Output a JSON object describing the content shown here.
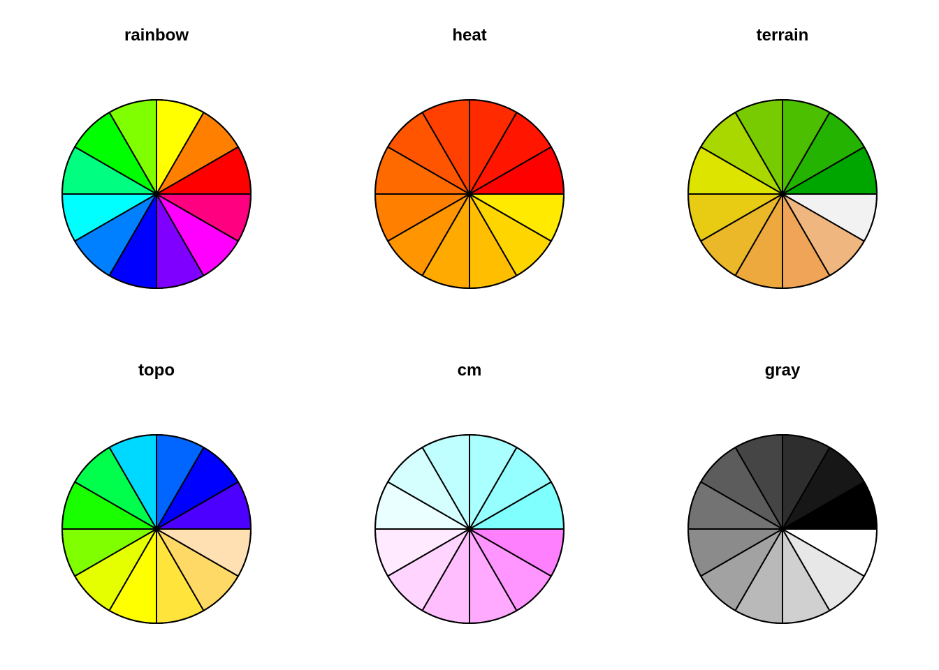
{
  "chart_data": [
    {
      "type": "pie",
      "title": "rainbow",
      "values": [
        1,
        1,
        1,
        1,
        1,
        1,
        1,
        1,
        1,
        1,
        1,
        1
      ],
      "colors": [
        "#FF0000",
        "#FF8000",
        "#FFFF00",
        "#80FF00",
        "#00FF00",
        "#00FF80",
        "#00FFFF",
        "#0080FF",
        "#0000FF",
        "#8000FF",
        "#FF00FF",
        "#FF0080"
      ]
    },
    {
      "type": "pie",
      "title": "heat",
      "values": [
        1,
        1,
        1,
        1,
        1,
        1,
        1,
        1,
        1,
        1,
        1,
        1
      ],
      "colors": [
        "#FF0000",
        "#FF1500",
        "#FF2A00",
        "#FF4000",
        "#FF5500",
        "#FF6A00",
        "#FF8000",
        "#FF9500",
        "#FFAA00",
        "#FFBF00",
        "#FFD500",
        "#FFEA00"
      ]
    },
    {
      "type": "pie",
      "title": "terrain",
      "values": [
        1,
        1,
        1,
        1,
        1,
        1,
        1,
        1,
        1,
        1,
        1,
        1
      ],
      "colors": [
        "#00A600",
        "#24B300",
        "#4BBF00",
        "#78CB00",
        "#A8D800",
        "#DCE400",
        "#E8CC14",
        "#EBB82A",
        "#EDA93D",
        "#EFA457",
        "#F0B67F",
        "#F2F2F2"
      ]
    },
    {
      "type": "pie",
      "title": "topo",
      "values": [
        1,
        1,
        1,
        1,
        1,
        1,
        1,
        1,
        1,
        1,
        1,
        1
      ],
      "colors": [
        "#4C00FF",
        "#0000FF",
        "#0066FF",
        "#00D9FF",
        "#00FF4D",
        "#1AFF00",
        "#80FF00",
        "#E6FF00",
        "#FFFF00",
        "#FFE53B",
        "#FFD966",
        "#FFE0B3"
      ]
    },
    {
      "type": "pie",
      "title": "cm",
      "values": [
        1,
        1,
        1,
        1,
        1,
        1,
        1,
        1,
        1,
        1,
        1,
        1
      ],
      "colors": [
        "#80FFFF",
        "#95FFFF",
        "#AAFFFF",
        "#BFFFFF",
        "#D5FFFF",
        "#EAFFFF",
        "#FFEAFF",
        "#FFD5FF",
        "#FFBFFF",
        "#FFAAFF",
        "#FF95FF",
        "#FF80FF"
      ]
    },
    {
      "type": "pie",
      "title": "gray",
      "values": [
        1,
        1,
        1,
        1,
        1,
        1,
        1,
        1,
        1,
        1,
        1,
        1
      ],
      "colors": [
        "#000000",
        "#171717",
        "#2E2E2E",
        "#454545",
        "#5C5C5C",
        "#737373",
        "#8B8B8B",
        "#A2A2A2",
        "#B9B9B9",
        "#D0D0D0",
        "#E7E7E7",
        "#FFFFFF"
      ]
    }
  ]
}
